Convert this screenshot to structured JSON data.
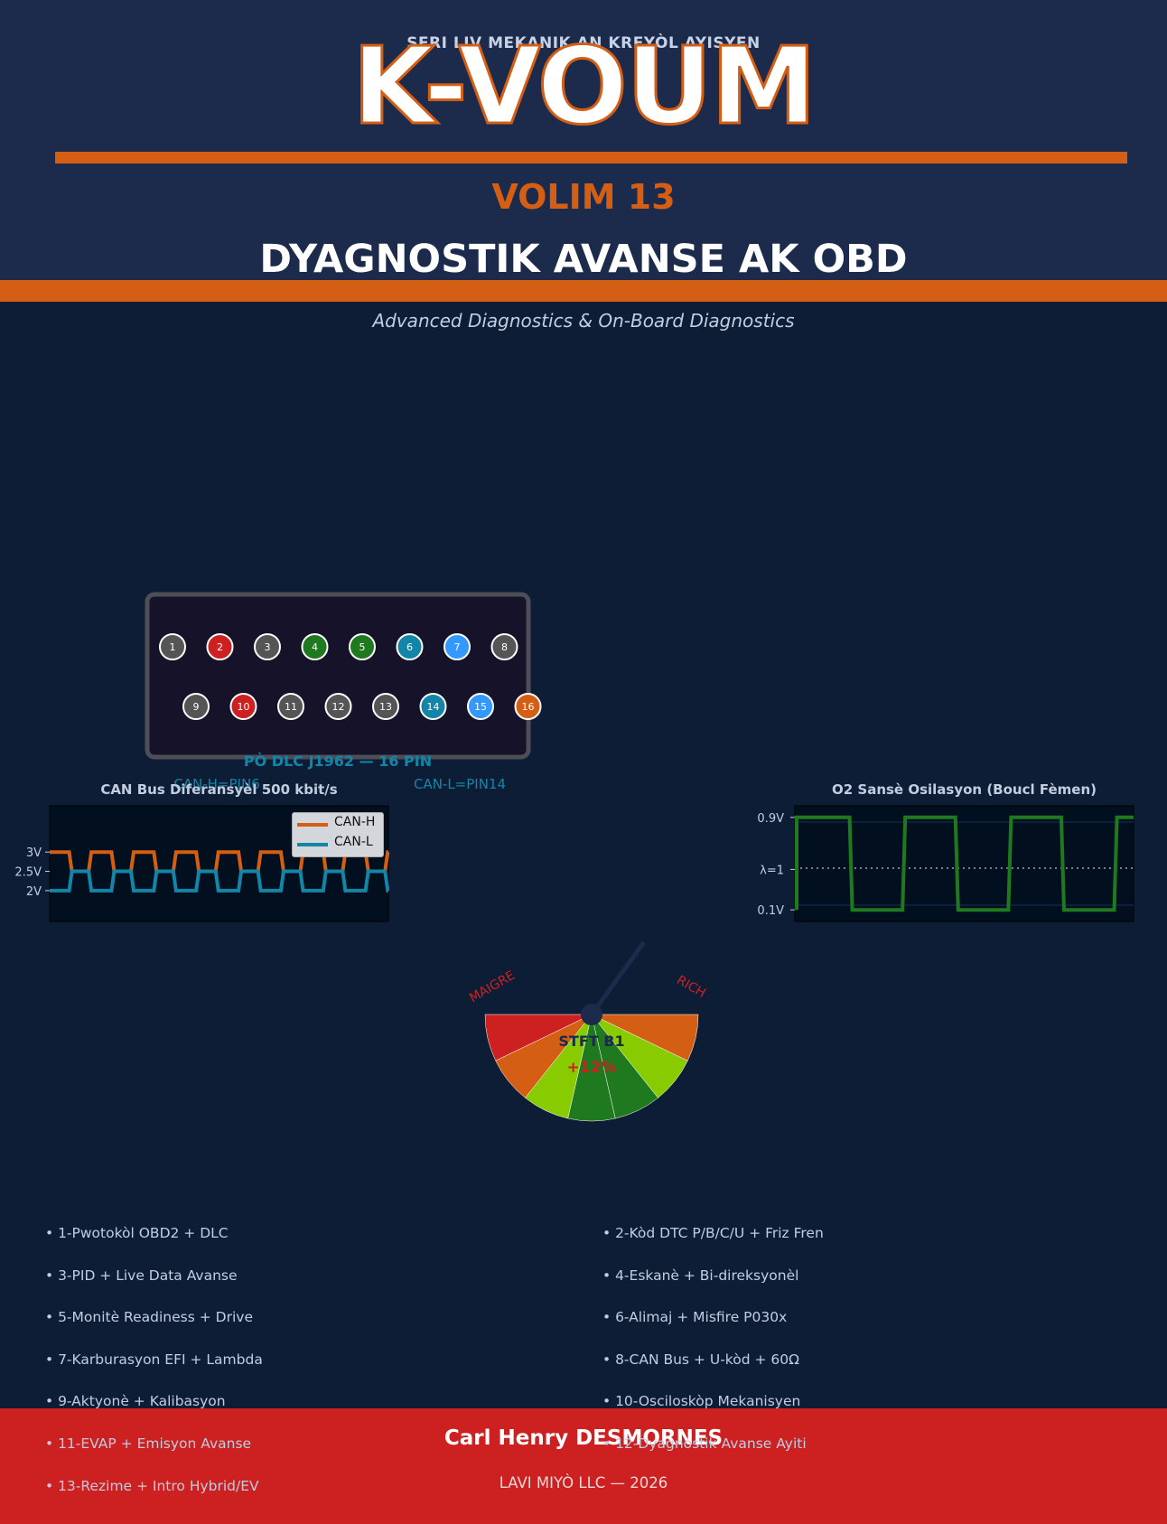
{
  "header": {
    "series": "SERI LIV MEKANIK AN KREYÒL AYISYEN",
    "brand": "K-VOUM",
    "volume": "VOLIM 13",
    "title": "DYAGNOSTIK AVANSE AK OBD",
    "subtitle": "Advanced Diagnostics & On-Board Diagnostics"
  },
  "colors": {
    "navy_header": "#1c2a4c",
    "navy_body": "#0e1d36",
    "accent_orange": "#d45e14",
    "accent_red": "#cd2020",
    "teal": "#1386a8",
    "green": "#1f7a1f"
  },
  "connector": {
    "caption": "PÒ DLC J1962 — 16 PIN",
    "can_h_label": "CAN-H=PIN6",
    "can_l_label": "CAN-L=PIN14",
    "pins": [
      {
        "n": "1",
        "color": "#555555"
      },
      {
        "n": "2",
        "color": "#cd2020"
      },
      {
        "n": "3",
        "color": "#555555"
      },
      {
        "n": "4",
        "color": "#1f7a1f"
      },
      {
        "n": "5",
        "color": "#1f7a1f"
      },
      {
        "n": "6",
        "color": "#1386a8"
      },
      {
        "n": "7",
        "color": "#3399ff"
      },
      {
        "n": "8",
        "color": "#555555"
      },
      {
        "n": "9",
        "color": "#555555"
      },
      {
        "n": "10",
        "color": "#cd2020"
      },
      {
        "n": "11",
        "color": "#555555"
      },
      {
        "n": "12",
        "color": "#555555"
      },
      {
        "n": "13",
        "color": "#555555"
      },
      {
        "n": "14",
        "color": "#1386a8"
      },
      {
        "n": "15",
        "color": "#3399ff"
      },
      {
        "n": "16",
        "color": "#d45e14"
      }
    ]
  },
  "can_chart": {
    "title": "CAN Bus Diferansyèl 500 kbit/s",
    "yticks": [
      "3V",
      "2.5V",
      "2V"
    ],
    "legend": [
      "CAN-H",
      "CAN-L"
    ]
  },
  "o2_chart": {
    "title": "O2 Sansè Osilasyon (Boucl Fèmen)",
    "yticks": [
      "0.9V",
      "λ=1",
      "0.1V"
    ]
  },
  "gauge": {
    "label": "STFT B1",
    "value": "+12%",
    "left_label": "MAIGRE",
    "right_label": "RICH"
  },
  "chart_data": [
    {
      "type": "line",
      "title": "CAN Bus Diferansyèl 500 kbit/s",
      "xlabel": "",
      "ylabel": "",
      "ylim": [
        1.2,
        4.2
      ],
      "yticks": [
        3,
        2.5,
        2
      ],
      "series": [
        {
          "name": "CAN-H",
          "color": "#d45e14",
          "recessive": 2.5,
          "dominant": 3.0,
          "periods": 8
        },
        {
          "name": "CAN-L",
          "color": "#1386a8",
          "recessive": 2.5,
          "dominant": 2.0,
          "periods": 8
        }
      ]
    },
    {
      "type": "line",
      "title": "O2 Sansè Osilasyon (Boucl Fèmen)",
      "ylim": [
        0,
        1.0
      ],
      "yticks": [
        0.9,
        0.45,
        0.1
      ],
      "series": [
        {
          "color": "#1f7a1f",
          "high": 0.9,
          "low": 0.1,
          "cycles": 3.2
        }
      ]
    },
    {
      "type": "pie",
      "title": "STFT B1",
      "value_percent": 12,
      "sectors": [
        "#cd2020",
        "#d45e14",
        "#88cc00",
        "#1f7a1f",
        "#1f7a1f",
        "#88cc00",
        "#d45e14"
      ]
    }
  ],
  "toc": {
    "left": [
      "• 1-Pwotokòl OBD2 + DLC",
      "• 3-PID + Live Data Avanse",
      "• 5-Monitè Readiness + Drive",
      "• 7-Karburasyon EFI + Lambda",
      "• 9-Aktyonè + Kalibasyon",
      "• 11-EVAP + Emisyon Avanse",
      "• 13-Rezime + Intro Hybrid/EV"
    ],
    "right": [
      "• 2-Kòd DTC P/B/C/U + Friz Fren",
      "• 4-Eskanè + Bi-direksyonèl",
      "• 6-Alimaj + Misfire P030x",
      "• 8-CAN Bus + U-kòd + 60Ω",
      "• 10-Osciloskòp Mekanisyen",
      "• 12-Dyagnostik Avanse Ayiti"
    ]
  },
  "footer": {
    "author": "Carl Henry DESMORNES",
    "publisher": "LAVI MIYÒ LLC  —  2026"
  }
}
